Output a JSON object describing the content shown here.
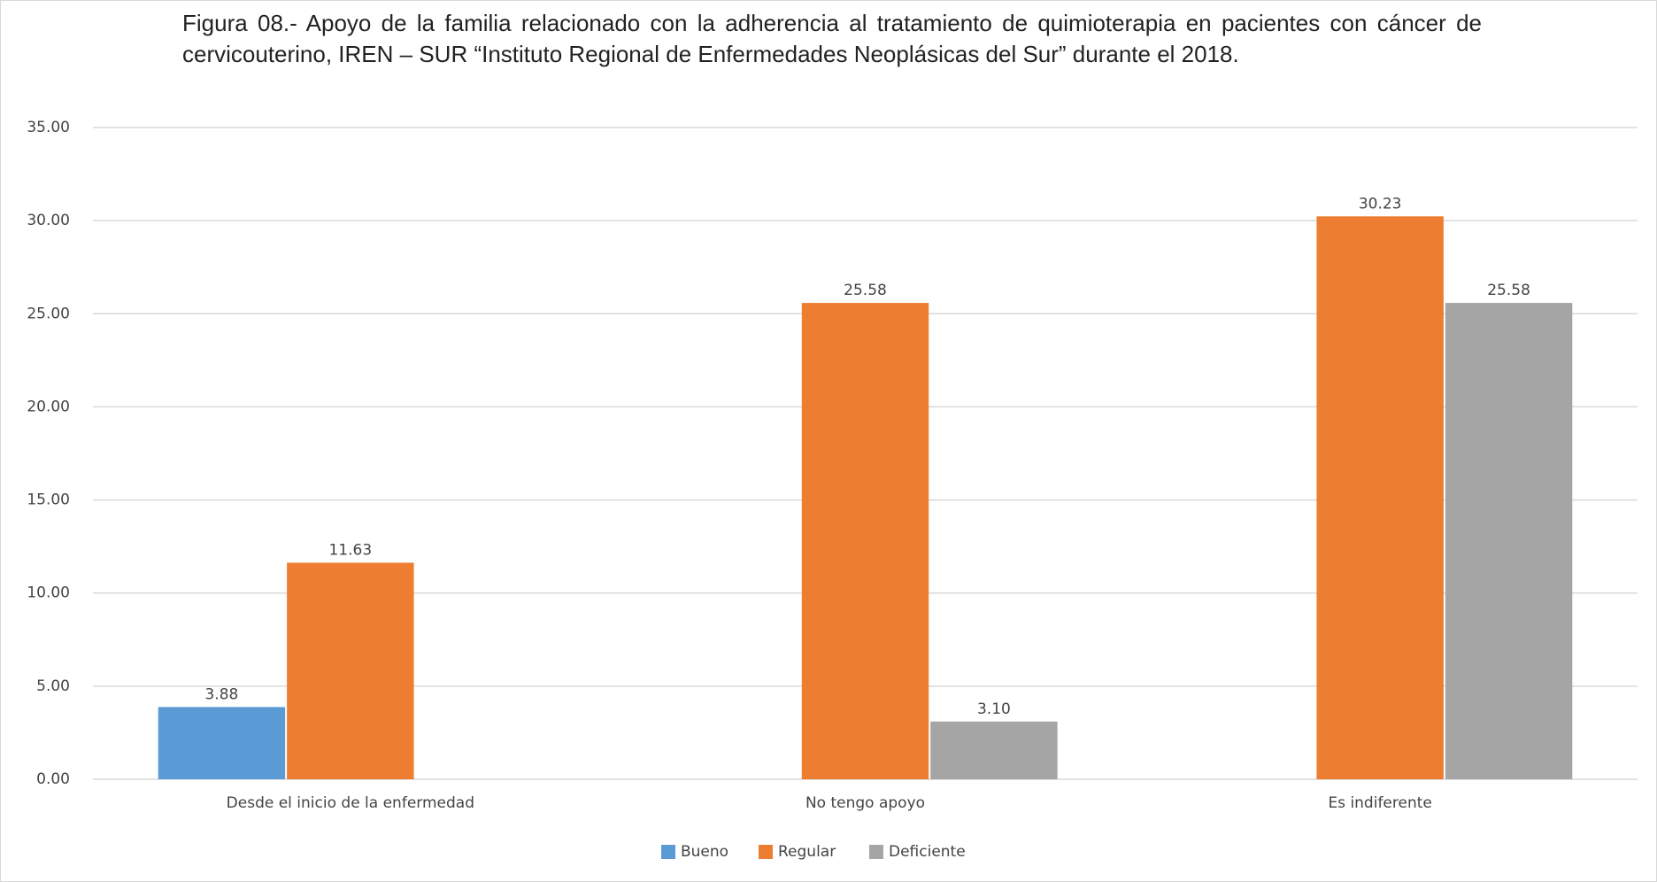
{
  "chart_data": {
    "type": "bar",
    "title": "Figura 08.- Apoyo de la familia relacionado con la adherencia al tratamiento de quimioterapia en pacientes con cáncer de cervicouterino, IREN – SUR “Instituto Regional de Enfermedades Neoplásicas del Sur” durante el 2018.",
    "categories": [
      "Desde el inicio de la enfermedad",
      "No tengo apoyo",
      "Es indiferente"
    ],
    "series": [
      {
        "name": "Bueno",
        "color": "#5b9bd5",
        "values": [
          3.88,
          null,
          null
        ],
        "value_labels": [
          "3.88",
          null,
          null
        ]
      },
      {
        "name": "Regular",
        "color": "#ed7d31",
        "values": [
          11.63,
          25.58,
          30.23
        ],
        "value_labels": [
          "11.63",
          "25.58",
          "30.23"
        ]
      },
      {
        "name": "Deficiente",
        "color": "#a5a5a5",
        "values": [
          null,
          3.1,
          25.58
        ],
        "value_labels": [
          null,
          "3.10",
          "25.58"
        ]
      }
    ],
    "ylim": [
      0,
      35
    ],
    "yticks": [
      {
        "value": 0,
        "label": "0.00"
      },
      {
        "value": 5,
        "label": "5.00"
      },
      {
        "value": 10,
        "label": "10.00"
      },
      {
        "value": 15,
        "label": "15.00"
      },
      {
        "value": 20,
        "label": "20.00"
      },
      {
        "value": 25,
        "label": "25.00"
      },
      {
        "value": 30,
        "label": "30.00"
      },
      {
        "value": 35,
        "label": "35.00"
      }
    ],
    "grid": true,
    "legend": "bottom"
  }
}
